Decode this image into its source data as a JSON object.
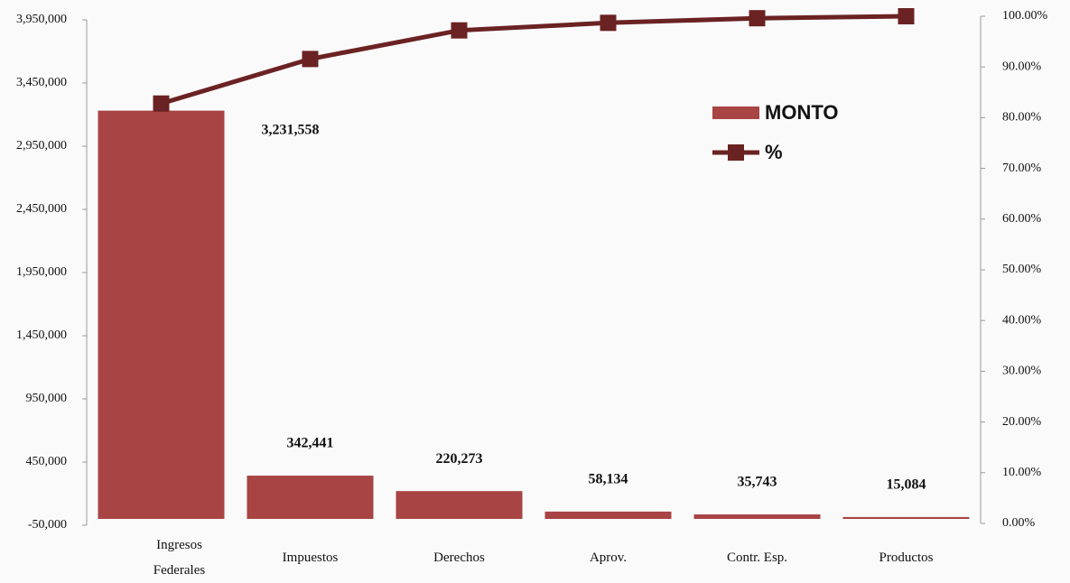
{
  "chart_data": {
    "type": "pareto",
    "categories": [
      "Ingresos Federales",
      "Impuestos",
      "Derechos",
      "Aprov.",
      "Contr. Esp.",
      "Productos"
    ],
    "series": [
      {
        "name": "MONTO",
        "color": "#a84444",
        "values": [
          3231558,
          342441,
          220273,
          58134,
          35743,
          15084
        ],
        "value_labels": [
          "3,231,558",
          "342,441",
          "220,273",
          "58,134",
          "35,743",
          "15,084"
        ]
      },
      {
        "name": "%",
        "color": "#6b2222",
        "axis": "y2",
        "values": [
          82.79,
          91.57,
          97.21,
          98.7,
          99.61,
          100.0
        ]
      }
    ],
    "ylim": [
      -50000,
      3950000
    ],
    "yticks": [
      {
        "value": -50000,
        "label": "-50,000"
      },
      {
        "value": 450000,
        "label": "450,000"
      },
      {
        "value": 950000,
        "label": "950,000"
      },
      {
        "value": 1450000,
        "label": "1,450,000"
      },
      {
        "value": 1950000,
        "label": "1,950,000"
      },
      {
        "value": 2450000,
        "label": "2,450,000"
      },
      {
        "value": 2950000,
        "label": "2,950,000"
      },
      {
        "value": 3450000,
        "label": "3,450,000"
      },
      {
        "value": 3950000,
        "label": "3,950,000"
      }
    ],
    "y2lim": [
      0,
      100
    ],
    "y2ticks": [
      {
        "value": 0,
        "label": "0.00%"
      },
      {
        "value": 10,
        "label": "10.00%"
      },
      {
        "value": 20,
        "label": "20.00%"
      },
      {
        "value": 30,
        "label": "30.00%"
      },
      {
        "value": 40,
        "label": "40.00%"
      },
      {
        "value": 50,
        "label": "50.00%"
      },
      {
        "value": 60,
        "label": "60.00%"
      },
      {
        "value": 70,
        "label": "70.00%"
      },
      {
        "value": 80,
        "label": "80.00%"
      },
      {
        "value": 90,
        "label": "90.00%"
      },
      {
        "value": 100,
        "label": "100.00%"
      }
    ]
  }
}
